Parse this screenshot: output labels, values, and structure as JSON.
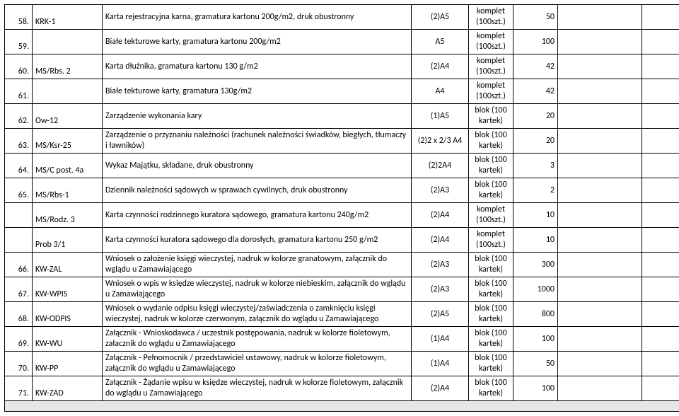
{
  "rows": [
    {
      "n": "58.",
      "code": "KRK-1",
      "desc": "Karta rejestracyjna karna, gramatura kartonu 200g/m2, druk obustronny",
      "fmt": "(2)A5",
      "unit": "komplet (100szt.)",
      "qty": "50"
    },
    {
      "n": "59.",
      "code": "",
      "desc": "Białe tekturowe karty, gramatura kartonu 200g/m2",
      "fmt": "A5",
      "unit": "komplet (100szt.)",
      "qty": "100"
    },
    {
      "n": "60.",
      "code": "MS/Rbs. 2",
      "desc": "Karta dłużnika, gramatura kartonu 130 g/m2",
      "fmt": "(2)A4",
      "unit": "komplet (100szt.)",
      "qty": "42"
    },
    {
      "n": "61.",
      "code": "",
      "desc": "Białe tekturowe karty, gramatura 130g/m2",
      "fmt": "A4",
      "unit": "komplet (100szt.)",
      "qty": "42"
    },
    {
      "n": "62.",
      "code": "Ow-12",
      "desc": "Zarządzenie wykonania kary",
      "fmt": "(1)A5",
      "unit": "blok (100 kartek)",
      "qty": "20"
    },
    {
      "n": "63.",
      "code": "MS/Ksr-25",
      "desc": "Zarządzenie o przyznaniu należności (rachunek należności świadków, biegłych, tłumaczy i ławników)",
      "fmt": "(2)2 x 2/3 A4",
      "unit": "blok (100 kartek)",
      "qty": "20"
    },
    {
      "n": "64.",
      "code": "MS/C post. 4a",
      "desc": "Wykaz Majątku, składane, druk obustronny",
      "fmt": "(2)2A4",
      "unit": "blok (100 kartek)",
      "qty": "3"
    },
    {
      "n": "65.",
      "code": "MS/Rbs-1",
      "desc": "Dziennik należności sądowych w sprawach cywilnych, druk obustronny",
      "fmt": "(2)A3",
      "unit": "blok (100 kartek)",
      "qty": "2"
    },
    {
      "n": "",
      "code": "MS/Rodz. 3",
      "desc": "Karta czynności rodzinnego kuratora sądowego, gramatura kartonu 240g/m2",
      "fmt": "(2)A4",
      "unit": "komplet (100szt.)",
      "qty": "10"
    },
    {
      "n": "",
      "code": "Prob 3/1",
      "desc": "Karta czynności kuratora sądowego dla dorosłych, gramatura kartonu 250 g/m2",
      "fmt": "(2)A4",
      "unit": "komplet (100szt.)",
      "qty": "10"
    },
    {
      "n": "66.",
      "code": "KW-ZAL",
      "desc": "Wniosek o założenie księgi wieczystej, nadruk w kolorze granatowym, załącznik do wglądu u Zamawiającego",
      "fmt": "(2)A3",
      "unit": "blok (100 kartek)",
      "qty": "300"
    },
    {
      "n": "67.",
      "code": "KW-WPIS",
      "desc": "Wniosek o wpis w księdze wieczystej, nadruk w kolorze niebieskim, załącznik do wglądu u Zamawiającego",
      "fmt": "(2)A3",
      "unit": "blok (100 kartek)",
      "qty": "1000"
    },
    {
      "n": "68.",
      "code": "KW-ODPIS",
      "desc": "Wniosek o wydanie odpisu księgi wieczystej/zaświadczenia o zamknięciu księgi wieczystej, nadruk w kolorze czerwonym, załącznik do wglądu u Zamawiającego",
      "fmt": "(2)A5",
      "unit": "blok (100 kartek)",
      "qty": "800"
    },
    {
      "n": "69.",
      "code": "KW-WU",
      "desc": "Załącznik - Wnioskodawca / uczestnik postępowania, nadruk w kolorze fioletowym, załacznik do wglądu u Zamawiającego",
      "fmt": "(1)A4",
      "unit": "blok (100 kartek)",
      "qty": "100"
    },
    {
      "n": "70.",
      "code": "KW-PP",
      "desc": "Załącznik - Pełnomocnik / przedstawiciel ustawowy, nadruk w kolorze fioletowym, załącznik do wglądu u Zamawiającego",
      "fmt": "(1)A4",
      "unit": "blok (100 kartek)",
      "qty": "50"
    },
    {
      "n": "71.",
      "code": "KW-ZAD",
      "desc": "Załącznik - Żądanie wpisu w księdze wieczystej, nadruk w kolorze fioletowym, załącznik do wglądu u Zamawiającego",
      "fmt": "(2)A4",
      "unit": "blok (100 kartek)",
      "qty": "100"
    }
  ]
}
